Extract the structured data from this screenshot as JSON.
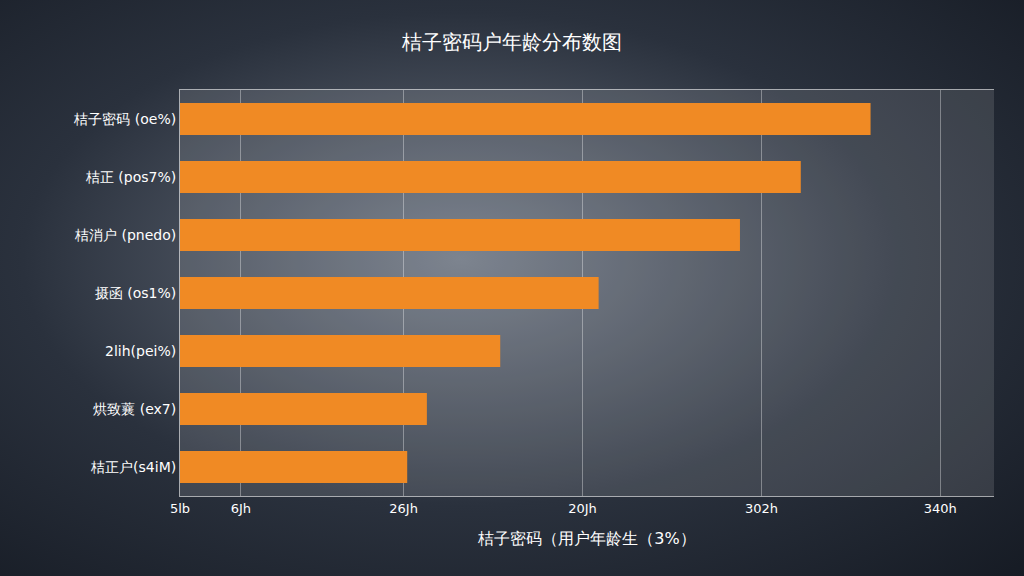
{
  "chart_data": {
    "type": "bar",
    "orientation": "horizontal",
    "title": "桔子密码户年龄分布数图",
    "xlabel": "桔子密码（用户年龄生（3%）",
    "categories": [
      "桔子密码 (oe%)",
      "桔正 (pos7%)",
      "桔消户 (pnedo)",
      "摄函 (os1%)",
      "2lih(pei%)",
      "烘致蘘 (ex7)",
      "桔正户(s4iM)"
    ],
    "values": [
      386,
      347,
      313,
      234,
      179,
      138,
      127
    ],
    "color": "#f08a24",
    "xlim": [
      0,
      455
    ],
    "xticks": [
      {
        "value": 0,
        "label": "5lb"
      },
      {
        "value": 34,
        "label": "6Jh"
      },
      {
        "value": 125,
        "label": "26Jh"
      },
      {
        "value": 225,
        "label": "20Jh"
      },
      {
        "value": 325,
        "label": "302h"
      },
      {
        "value": 425,
        "label": "340h"
      }
    ],
    "grid": true
  }
}
